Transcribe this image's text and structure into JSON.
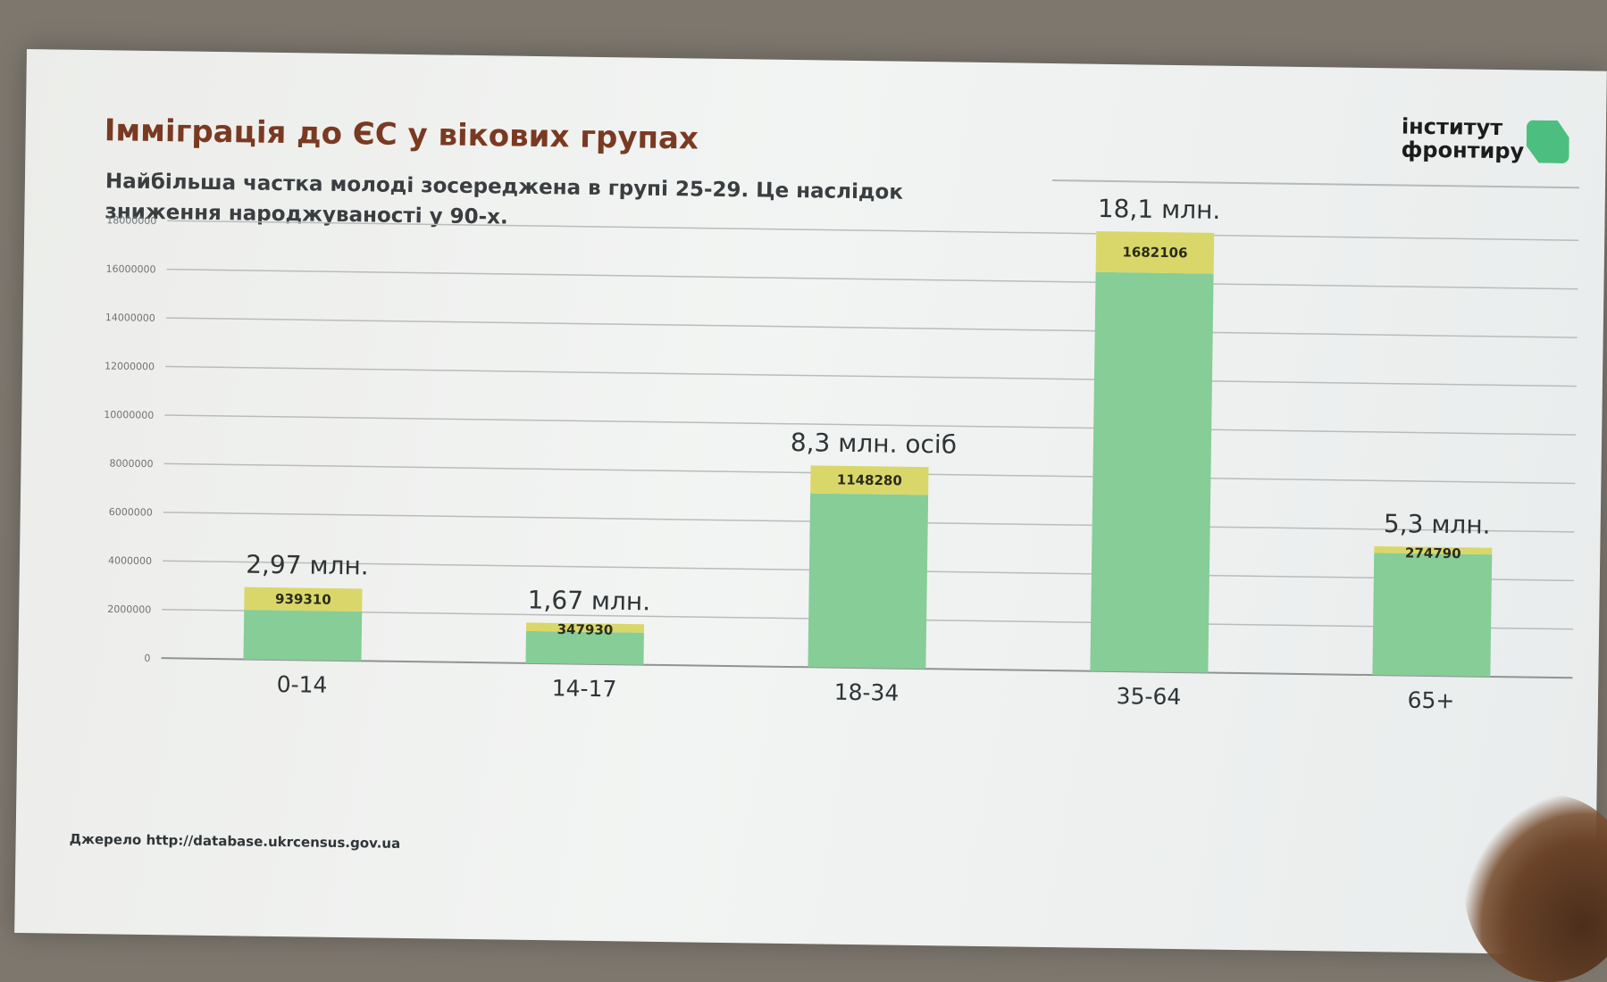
{
  "slide": {
    "title": "Імміграція до ЄС у вікових групах",
    "subtitle": "Найбільша частка молоді зосереджена в групі 25-29. Це наслідок зниження народжуваності у 90-х.",
    "logo_line1": "інститут",
    "logo_line2": "фронтиру",
    "source": "Джерело http://database.ukrcensus.gov.ua"
  },
  "colors": {
    "base": "#86cd98",
    "top": "#d9d76a",
    "grid": "#b9bcbc",
    "title": "#7a3a22"
  },
  "chart_data": {
    "type": "bar",
    "stacked": true,
    "categories": [
      "0-14",
      "14-17",
      "18-34",
      "35-64",
      "65+"
    ],
    "series": [
      {
        "values": [
          2030690,
          1322070,
          7151720,
          16417894,
          5025210
        ]
      },
      {
        "values": [
          939310,
          347930,
          1148280,
          1682106,
          274790
        ]
      }
    ],
    "segment_labels": [
      "939310",
      "347930",
      "1148280",
      "1682106",
      "274790"
    ],
    "total_labels": [
      "2,97 млн.",
      "1,67 млн.",
      "8,3 млн. осіб",
      "18,1 млн.",
      "5,3 млн."
    ],
    "yticks": [
      0,
      2000000,
      4000000,
      6000000,
      8000000,
      10000000,
      12000000,
      14000000,
      16000000,
      18000000
    ],
    "ylim": [
      0,
      18000000
    ],
    "grid": true,
    "legend": "none"
  }
}
